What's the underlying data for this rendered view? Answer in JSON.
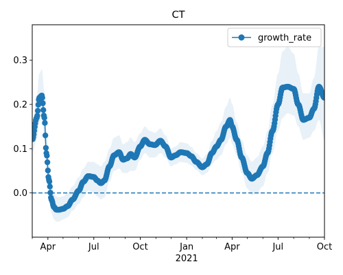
{
  "chart_data": {
    "type": "line",
    "title": "CT",
    "xlabel": "",
    "ylabel": "",
    "ylim": [
      -0.1,
      0.38
    ],
    "xlim": [
      "2020-03-01",
      "2021-10-01"
    ],
    "x_ticks": [
      {
        "label": "Apr",
        "date": "2020-04-01"
      },
      {
        "label": "Jul",
        "date": "2020-07-01"
      },
      {
        "label": "Oct",
        "date": "2020-10-01"
      },
      {
        "label": "Jan",
        "date": "2021-01-01"
      },
      {
        "label": "Apr",
        "date": "2021-04-01"
      },
      {
        "label": "Jul",
        "date": "2021-07-01"
      },
      {
        "label": "Oct",
        "date": "2021-10-01"
      }
    ],
    "x_year_label": "2021",
    "y_ticks": [
      0.0,
      0.1,
      0.2,
      0.3
    ],
    "y_tick_labels": [
      "0.0",
      "0.1",
      "0.2",
      "0.3"
    ],
    "legend": {
      "position": "top-right",
      "entries": [
        "growth_rate"
      ]
    },
    "reference_line": {
      "y": 0.0,
      "style": "dashed"
    },
    "colors": {
      "line": "#1f77b4",
      "band": "#1f77b4",
      "band_opacity": 0.1
    },
    "series": [
      {
        "name": "growth_rate",
        "x": [
          "2020-03-01",
          "2020-03-10",
          "2020-03-15",
          "2020-03-20",
          "2020-03-25",
          "2020-03-29",
          "2020-04-03",
          "2020-04-08",
          "2020-04-13",
          "2020-04-18",
          "2020-04-23",
          "2020-05-01",
          "2020-05-10",
          "2020-05-20",
          "2020-06-01",
          "2020-06-10",
          "2020-06-20",
          "2020-07-01",
          "2020-07-08",
          "2020-07-15",
          "2020-07-22",
          "2020-08-01",
          "2020-08-10",
          "2020-08-20",
          "2020-08-28",
          "2020-09-05",
          "2020-09-12",
          "2020-09-20",
          "2020-10-01",
          "2020-10-10",
          "2020-10-20",
          "2020-10-30",
          "2020-11-10",
          "2020-11-20",
          "2020-12-01",
          "2020-12-10",
          "2020-12-20",
          "2021-01-01",
          "2021-01-10",
          "2021-01-20",
          "2021-02-01",
          "2021-02-10",
          "2021-02-20",
          "2021-03-01",
          "2021-03-10",
          "2021-03-20",
          "2021-03-28",
          "2021-04-01",
          "2021-04-10",
          "2021-04-20",
          "2021-05-01",
          "2021-05-10",
          "2021-05-20",
          "2021-06-01",
          "2021-06-10",
          "2021-06-20",
          "2021-07-01",
          "2021-07-10",
          "2021-07-20",
          "2021-08-01",
          "2021-08-10",
          "2021-08-20",
          "2021-09-01",
          "2021-09-10",
          "2021-09-20",
          "2021-10-01"
        ],
        "values": [
          0.12,
          0.17,
          0.215,
          0.22,
          0.17,
          0.09,
          0.03,
          -0.015,
          -0.032,
          -0.038,
          -0.038,
          -0.036,
          -0.03,
          -0.015,
          0.005,
          0.025,
          0.038,
          0.036,
          0.028,
          0.022,
          0.028,
          0.06,
          0.085,
          0.092,
          0.075,
          0.078,
          0.088,
          0.08,
          0.105,
          0.12,
          0.11,
          0.108,
          0.118,
          0.105,
          0.08,
          0.085,
          0.092,
          0.09,
          0.083,
          0.07,
          0.058,
          0.065,
          0.09,
          0.105,
          0.12,
          0.15,
          0.165,
          0.15,
          0.12,
          0.08,
          0.045,
          0.032,
          0.04,
          0.06,
          0.09,
          0.14,
          0.2,
          0.238,
          0.24,
          0.235,
          0.2,
          0.165,
          0.17,
          0.19,
          0.24,
          0.215
        ],
        "lower": [
          0.09,
          0.12,
          0.16,
          0.17,
          0.12,
          0.05,
          0.0,
          -0.045,
          -0.06,
          -0.065,
          -0.065,
          -0.06,
          -0.055,
          -0.04,
          -0.025,
          -0.01,
          0.005,
          0.0,
          -0.008,
          -0.015,
          -0.01,
          0.025,
          0.05,
          0.055,
          0.045,
          0.045,
          0.05,
          0.05,
          0.075,
          0.09,
          0.08,
          0.08,
          0.09,
          0.08,
          0.06,
          0.065,
          0.07,
          0.068,
          0.062,
          0.052,
          0.04,
          0.045,
          0.065,
          0.075,
          0.085,
          0.11,
          0.125,
          0.11,
          0.085,
          0.045,
          0.01,
          -0.005,
          0.0,
          0.015,
          0.045,
          0.09,
          0.14,
          0.17,
          0.18,
          0.175,
          0.15,
          0.12,
          0.125,
          0.14,
          0.165,
          0.12
        ],
        "upper": [
          0.15,
          0.22,
          0.27,
          0.28,
          0.23,
          0.14,
          0.08,
          0.025,
          0.0,
          -0.008,
          -0.01,
          -0.008,
          0.0,
          0.015,
          0.035,
          0.055,
          0.07,
          0.07,
          0.065,
          0.06,
          0.07,
          0.1,
          0.125,
          0.13,
          0.11,
          0.115,
          0.125,
          0.115,
          0.135,
          0.15,
          0.14,
          0.136,
          0.146,
          0.13,
          0.1,
          0.105,
          0.115,
          0.112,
          0.104,
          0.09,
          0.078,
          0.088,
          0.118,
          0.14,
          0.16,
          0.195,
          0.215,
          0.2,
          0.16,
          0.12,
          0.085,
          0.07,
          0.08,
          0.105,
          0.14,
          0.2,
          0.27,
          0.32,
          0.33,
          0.315,
          0.27,
          0.225,
          0.225,
          0.26,
          0.33,
          0.33
        ]
      }
    ]
  }
}
